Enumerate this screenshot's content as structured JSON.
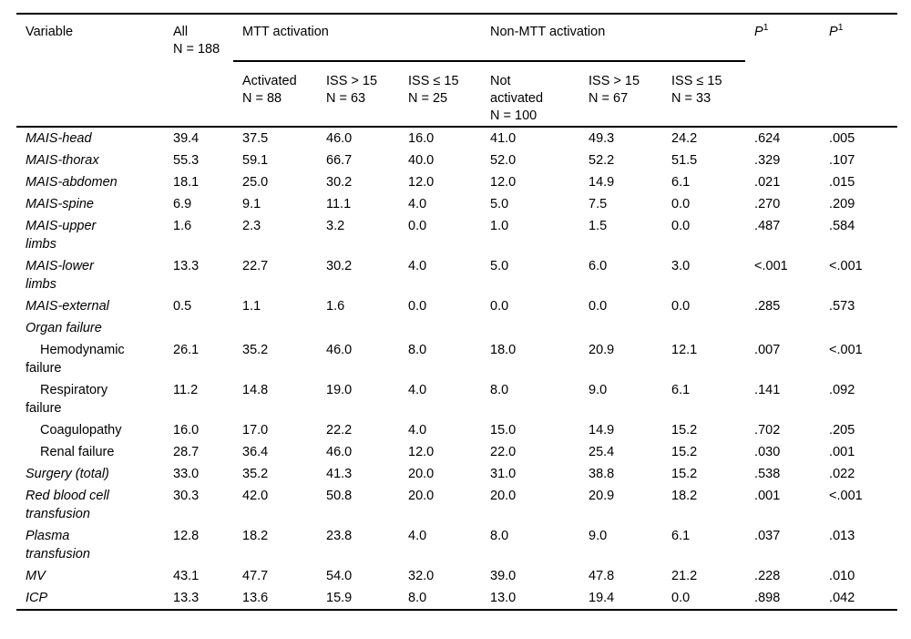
{
  "table": {
    "header": {
      "variable_label": "Variable",
      "all_column": {
        "lines": [
          "All",
          "N = 188"
        ]
      },
      "groups": [
        {
          "label": "MTT activation",
          "span": 3
        },
        {
          "label": "Non-MTT activation",
          "span": 3
        }
      ],
      "subcolumns": [
        {
          "lines": [
            "Activated",
            "N = 88"
          ]
        },
        {
          "lines": [
            "ISS > 15",
            "N = 63"
          ]
        },
        {
          "lines": [
            "ISS ≤ 15",
            "N = 25"
          ]
        },
        {
          "lines": [
            "Not",
            "activated",
            "N = 100"
          ]
        },
        {
          "lines": [
            "ISS > 15",
            "N = 67"
          ]
        },
        {
          "lines": [
            "ISS ≤ 15",
            "N = 33"
          ]
        }
      ],
      "p_columns": [
        {
          "base": "P",
          "sup": "1"
        },
        {
          "base": "P",
          "sup": "1"
        }
      ]
    },
    "rows": [
      {
        "lines": [
          "MAIS-head"
        ],
        "italic": true,
        "indent": false,
        "values": [
          "39.4",
          "37.5",
          "46.0",
          "16.0",
          "41.0",
          "49.3",
          "24.2",
          ".624",
          ".005"
        ]
      },
      {
        "lines": [
          "MAIS-thorax"
        ],
        "italic": true,
        "indent": false,
        "values": [
          "55.3",
          "59.1",
          "66.7",
          "40.0",
          "52.0",
          "52.2",
          "51.5",
          ".329",
          ".107"
        ]
      },
      {
        "lines": [
          "MAIS-abdomen"
        ],
        "italic": true,
        "indent": false,
        "values": [
          "18.1",
          "25.0",
          "30.2",
          "12.0",
          "12.0",
          "14.9",
          "6.1",
          ".021",
          ".015"
        ]
      },
      {
        "lines": [
          "MAIS-spine"
        ],
        "italic": true,
        "indent": false,
        "values": [
          "6.9",
          "9.1",
          "11.1",
          "4.0",
          "5.0",
          "7.5",
          "0.0",
          ".270",
          ".209"
        ]
      },
      {
        "lines": [
          "MAIS-upper",
          "limbs"
        ],
        "italic": true,
        "indent": false,
        "values": [
          "1.6",
          "2.3",
          "3.2",
          "0.0",
          "1.0",
          "1.5",
          "0.0",
          ".487",
          ".584"
        ]
      },
      {
        "lines": [
          "MAIS-lower",
          "limbs"
        ],
        "italic": true,
        "indent": false,
        "values": [
          "13.3",
          "22.7",
          "30.2",
          "4.0",
          "5.0",
          "6.0",
          "3.0",
          "<.001",
          "<.001"
        ]
      },
      {
        "lines": [
          "MAIS-external"
        ],
        "italic": true,
        "indent": false,
        "values": [
          "0.5",
          "1.1",
          "1.6",
          "0.0",
          "0.0",
          "0.0",
          "0.0",
          ".285",
          ".573"
        ]
      },
      {
        "lines": [
          "Organ failure"
        ],
        "italic": true,
        "indent": false,
        "values": [
          "",
          "",
          "",
          "",
          "",
          "",
          "",
          "",
          ""
        ]
      },
      {
        "lines": [
          "Hemodynamic",
          "failure"
        ],
        "italic": false,
        "indent": true,
        "values": [
          "26.1",
          "35.2",
          "46.0",
          "8.0",
          "18.0",
          "20.9",
          "12.1",
          ".007",
          "<.001"
        ]
      },
      {
        "lines": [
          "Respiratory",
          "failure"
        ],
        "italic": false,
        "indent": true,
        "values": [
          "11.2",
          "14.8",
          "19.0",
          "4.0",
          "8.0",
          "9.0",
          "6.1",
          ".141",
          ".092"
        ]
      },
      {
        "lines": [
          "Coagulopathy"
        ],
        "italic": false,
        "indent": true,
        "values": [
          "16.0",
          "17.0",
          "22.2",
          "4.0",
          "15.0",
          "14.9",
          "15.2",
          ".702",
          ".205"
        ]
      },
      {
        "lines": [
          "Renal failure"
        ],
        "italic": false,
        "indent": true,
        "values": [
          "28.7",
          "36.4",
          "46.0",
          "12.0",
          "22.0",
          "25.4",
          "15.2",
          ".030",
          ".001"
        ]
      },
      {
        "lines": [
          "Surgery (total)"
        ],
        "italic": true,
        "indent": false,
        "values": [
          "33.0",
          "35.2",
          "41.3",
          "20.0",
          "31.0",
          "38.8",
          "15.2",
          ".538",
          ".022"
        ]
      },
      {
        "lines": [
          "Red blood cell",
          "transfusion"
        ],
        "italic": true,
        "indent": false,
        "values": [
          "30.3",
          "42.0",
          "50.8",
          "20.0",
          "20.0",
          "20.9",
          "18.2",
          ".001",
          "<.001"
        ]
      },
      {
        "lines": [
          "Plasma",
          "transfusion"
        ],
        "italic": true,
        "indent": false,
        "values": [
          "12.8",
          "18.2",
          "23.8",
          "4.0",
          "8.0",
          "9.0",
          "6.1",
          ".037",
          ".013"
        ]
      },
      {
        "lines": [
          "MV"
        ],
        "italic": true,
        "indent": false,
        "values": [
          "43.1",
          "47.7",
          "54.0",
          "32.0",
          "39.0",
          "47.8",
          "21.2",
          ".228",
          ".010"
        ]
      },
      {
        "lines": [
          "ICP"
        ],
        "italic": true,
        "indent": false,
        "values": [
          "13.3",
          "13.6",
          "15.9",
          "8.0",
          "13.0",
          "19.4",
          "0.0",
          ".898",
          ".042"
        ]
      }
    ]
  }
}
